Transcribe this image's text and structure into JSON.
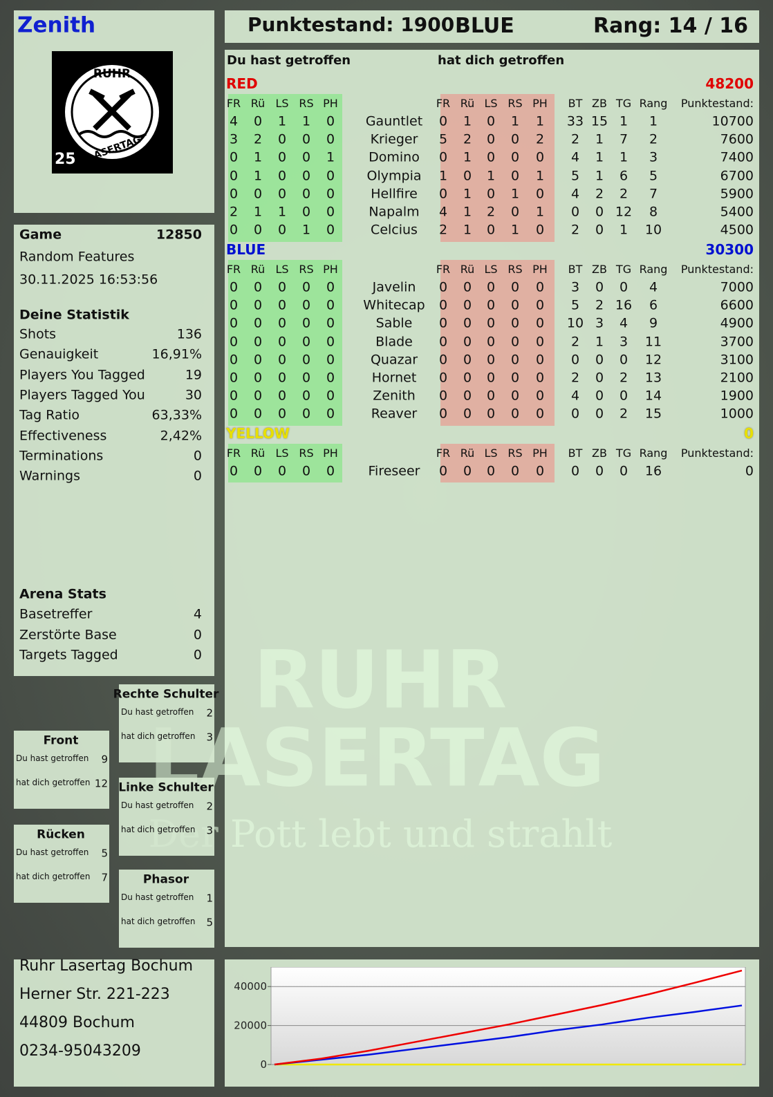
{
  "header": {
    "name": "Zenith",
    "score": "Punktestand: 1900",
    "team": "BLUE",
    "rank": "Rang: 14 / 16"
  },
  "logo": {
    "top": "RUHR",
    "bottom": "LASERTAG",
    "badge": "25"
  },
  "game": {
    "label": "Game",
    "id": "12850",
    "mode": "Random Features",
    "date": "30.11.2025 16:53:56"
  },
  "stats": {
    "title": "Deine Statistik",
    "rows": [
      [
        "Shots",
        "136"
      ],
      [
        "Genauigkeit",
        "16,91%"
      ],
      [
        "Players You Tagged",
        "19"
      ],
      [
        "Players Tagged You",
        "30"
      ],
      [
        "Tag Ratio",
        "63,33%"
      ],
      [
        "Effectiveness",
        "2,42%"
      ],
      [
        "Terminations",
        "0"
      ],
      [
        "Warnings",
        "0"
      ]
    ]
  },
  "arena": {
    "title": "Arena Stats",
    "rows": [
      [
        "Basetreffer",
        "4"
      ],
      [
        "Zerstörte Base",
        "0"
      ],
      [
        "Targets Tagged",
        "0"
      ]
    ]
  },
  "zones": [
    {
      "title": "Rechte Schulter",
      "rows": [
        [
          "Du hast getroffen",
          "2"
        ],
        [
          "hat dich getroffen",
          "3"
        ]
      ]
    },
    {
      "title": "Front",
      "rows": [
        [
          "Du hast getroffen",
          "9"
        ],
        [
          "hat dich getroffen",
          "12"
        ]
      ]
    },
    {
      "title": "Linke Schulter",
      "rows": [
        [
          "Du hast getroffen",
          "2"
        ],
        [
          "hat dich getroffen",
          "3"
        ]
      ]
    },
    {
      "title": "Rücken",
      "rows": [
        [
          "Du hast getroffen",
          "5"
        ],
        [
          "hat dich getroffen",
          "7"
        ]
      ]
    },
    {
      "title": "Phasor",
      "rows": [
        [
          "Du hast getroffen",
          "1"
        ],
        [
          "hat dich getroffen",
          "5"
        ]
      ]
    }
  ],
  "address": [
    "Ruhr Lasertag Bochum",
    "Herner Str. 221-223",
    "44809 Bochum",
    "0234-95043209"
  ],
  "watermark": [
    "RUHR",
    "LASERTAG",
    "Der Pott lebt und strahlt"
  ],
  "scoreboard": {
    "you_hit": "Du hast getroffen",
    "hit_you": "hat dich getroffen",
    "teams": [
      {
        "name": "RED",
        "color": "#e00000",
        "total": "48200",
        "hit_headers": [
          "FR",
          "Rü",
          "LS",
          "RS",
          "PH"
        ],
        "got_headers": [
          "FR",
          "Rü",
          "LS",
          "RS",
          "PH"
        ],
        "stat_headers": [
          "BT",
          "ZB",
          "TG",
          "Rang",
          "Punktestand:"
        ],
        "players": [
          {
            "name": "Gauntlet",
            "hit": [
              4,
              0,
              1,
              1,
              0
            ],
            "got": [
              0,
              1,
              0,
              1,
              1
            ],
            "stats": [
              33,
              15,
              1,
              1,
              10700
            ]
          },
          {
            "name": "Krieger",
            "hit": [
              3,
              2,
              0,
              0,
              0
            ],
            "got": [
              5,
              2,
              0,
              0,
              2
            ],
            "stats": [
              2,
              1,
              7,
              2,
              7600
            ]
          },
          {
            "name": "Domino",
            "hit": [
              0,
              1,
              0,
              0,
              1
            ],
            "got": [
              0,
              1,
              0,
              0,
              0
            ],
            "stats": [
              4,
              1,
              1,
              3,
              7400
            ]
          },
          {
            "name": "Olympia",
            "hit": [
              0,
              1,
              0,
              0,
              0
            ],
            "got": [
              1,
              0,
              1,
              0,
              1
            ],
            "stats": [
              5,
              1,
              6,
              5,
              6700
            ]
          },
          {
            "name": "Hellfire",
            "hit": [
              0,
              0,
              0,
              0,
              0
            ],
            "got": [
              0,
              1,
              0,
              1,
              0
            ],
            "stats": [
              4,
              2,
              2,
              7,
              5900
            ]
          },
          {
            "name": "Napalm",
            "hit": [
              2,
              1,
              1,
              0,
              0
            ],
            "got": [
              4,
              1,
              2,
              0,
              1
            ],
            "stats": [
              0,
              0,
              12,
              8,
              5400
            ]
          },
          {
            "name": "Celcius",
            "hit": [
              0,
              0,
              0,
              1,
              0
            ],
            "got": [
              2,
              1,
              0,
              1,
              0
            ],
            "stats": [
              2,
              0,
              1,
              10,
              4500
            ]
          }
        ]
      },
      {
        "name": "BLUE",
        "color": "#0010d0",
        "total": "30300",
        "hit_headers": [
          "FR",
          "Rü",
          "LS",
          "RS",
          "PH"
        ],
        "got_headers": [
          "FR",
          "Rü",
          "LS",
          "RS",
          "PH"
        ],
        "stat_headers": [
          "BT",
          "ZB",
          "TG",
          "Rang",
          "Punktestand:"
        ],
        "players": [
          {
            "name": "Javelin",
            "hit": [
              0,
              0,
              0,
              0,
              0
            ],
            "got": [
              0,
              0,
              0,
              0,
              0
            ],
            "stats": [
              3,
              0,
              0,
              4,
              7000
            ]
          },
          {
            "name": "Whitecap",
            "hit": [
              0,
              0,
              0,
              0,
              0
            ],
            "got": [
              0,
              0,
              0,
              0,
              0
            ],
            "stats": [
              5,
              2,
              16,
              6,
              6600
            ]
          },
          {
            "name": "Sable",
            "hit": [
              0,
              0,
              0,
              0,
              0
            ],
            "got": [
              0,
              0,
              0,
              0,
              0
            ],
            "stats": [
              10,
              3,
              4,
              9,
              4900
            ]
          },
          {
            "name": "Blade",
            "hit": [
              0,
              0,
              0,
              0,
              0
            ],
            "got": [
              0,
              0,
              0,
              0,
              0
            ],
            "stats": [
              2,
              1,
              3,
              11,
              3700
            ]
          },
          {
            "name": "Quazar",
            "hit": [
              0,
              0,
              0,
              0,
              0
            ],
            "got": [
              0,
              0,
              0,
              0,
              0
            ],
            "stats": [
              0,
              0,
              0,
              12,
              3100
            ]
          },
          {
            "name": "Hornet",
            "hit": [
              0,
              0,
              0,
              0,
              0
            ],
            "got": [
              0,
              0,
              0,
              0,
              0
            ],
            "stats": [
              2,
              0,
              2,
              13,
              2100
            ]
          },
          {
            "name": "Zenith",
            "hit": [
              0,
              0,
              0,
              0,
              0
            ],
            "got": [
              0,
              0,
              0,
              0,
              0
            ],
            "stats": [
              4,
              0,
              0,
              14,
              1900
            ]
          },
          {
            "name": "Reaver",
            "hit": [
              0,
              0,
              0,
              0,
              0
            ],
            "got": [
              0,
              0,
              0,
              0,
              0
            ],
            "stats": [
              0,
              0,
              2,
              15,
              1000
            ]
          }
        ]
      },
      {
        "name": "YELLOW",
        "color": "#e8e000",
        "total": "0",
        "hit_headers": [
          "FR",
          "Rü",
          "LS",
          "RS",
          "PH"
        ],
        "got_headers": [
          "FR",
          "Rü",
          "LS",
          "RS",
          "PH"
        ],
        "stat_headers": [
          "BT",
          "ZB",
          "TG",
          "Rang",
          "Punktestand:"
        ],
        "players": [
          {
            "name": "Fireseer",
            "hit": [
              0,
              0,
              0,
              0,
              0
            ],
            "got": [
              0,
              0,
              0,
              0,
              0
            ],
            "stats": [
              0,
              0,
              0,
              16,
              0
            ]
          }
        ]
      }
    ]
  },
  "chart_data": {
    "type": "line",
    "categories": [
      null,
      null,
      null,
      null,
      null,
      null,
      null,
      null,
      null,
      null,
      null
    ],
    "series": [
      {
        "color": "#ee0000",
        "values": [
          0,
          3000,
          7000,
          11500,
          16000,
          20500,
          25500,
          30500,
          36000,
          42000,
          48200
        ]
      },
      {
        "color": "#0010e0",
        "values": [
          0,
          2500,
          5000,
          8000,
          11000,
          14000,
          17500,
          20500,
          24000,
          27000,
          30300
        ]
      },
      {
        "color": "#f0e800",
        "values": [
          0,
          0,
          0,
          0,
          0,
          0,
          0,
          0,
          0,
          0,
          0
        ]
      }
    ],
    "ylim": [
      0,
      50000
    ],
    "yticks": [
      0,
      20000,
      40000
    ],
    "grid": true
  }
}
